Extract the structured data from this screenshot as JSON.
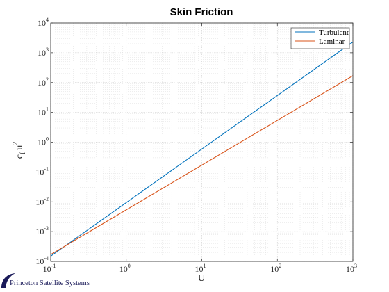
{
  "chart_data": {
    "type": "line",
    "title": "Skin Friction",
    "xlabel": "U",
    "ylabel": {
      "base": "c",
      "subscript": "f",
      "middle": "u",
      "superscript": "2"
    },
    "x_scale": "log",
    "y_scale": "log",
    "xlim": [
      0.1,
      1000
    ],
    "ylim": [
      0.0001,
      10000
    ],
    "x_ticks": [
      {
        "value": 0.1,
        "base": "10",
        "exp": "-1"
      },
      {
        "value": 1,
        "base": "10",
        "exp": "0"
      },
      {
        "value": 10,
        "base": "10",
        "exp": "1"
      },
      {
        "value": 100,
        "base": "10",
        "exp": "2"
      },
      {
        "value": 1000,
        "base": "10",
        "exp": "3"
      }
    ],
    "y_ticks": [
      {
        "value": 0.0001,
        "base": "10",
        "exp": "-4"
      },
      {
        "value": 0.001,
        "base": "10",
        "exp": "-3"
      },
      {
        "value": 0.01,
        "base": "10",
        "exp": "-2"
      },
      {
        "value": 0.1,
        "base": "10",
        "exp": "-1"
      },
      {
        "value": 1,
        "base": "10",
        "exp": "0"
      },
      {
        "value": 10,
        "base": "10",
        "exp": "1"
      },
      {
        "value": 100,
        "base": "10",
        "exp": "2"
      },
      {
        "value": 1000,
        "base": "10",
        "exp": "3"
      },
      {
        "value": 10000,
        "base": "10",
        "exp": "4"
      }
    ],
    "grid": true,
    "minor_grid": true,
    "legend_position": "top-right",
    "series": [
      {
        "name": "Turbulent",
        "color": "#0072BD",
        "x": [
          0.1,
          1000
        ],
        "y": [
          0.00015,
          2300
        ]
      },
      {
        "name": "Laminar",
        "color": "#D95319",
        "x": [
          0.1,
          1000
        ],
        "y": [
          0.00017,
          170
        ]
      }
    ]
  },
  "footer": {
    "logo_text": "Princeton Satellite Systems",
    "logo_color": "#1b1b5a"
  }
}
